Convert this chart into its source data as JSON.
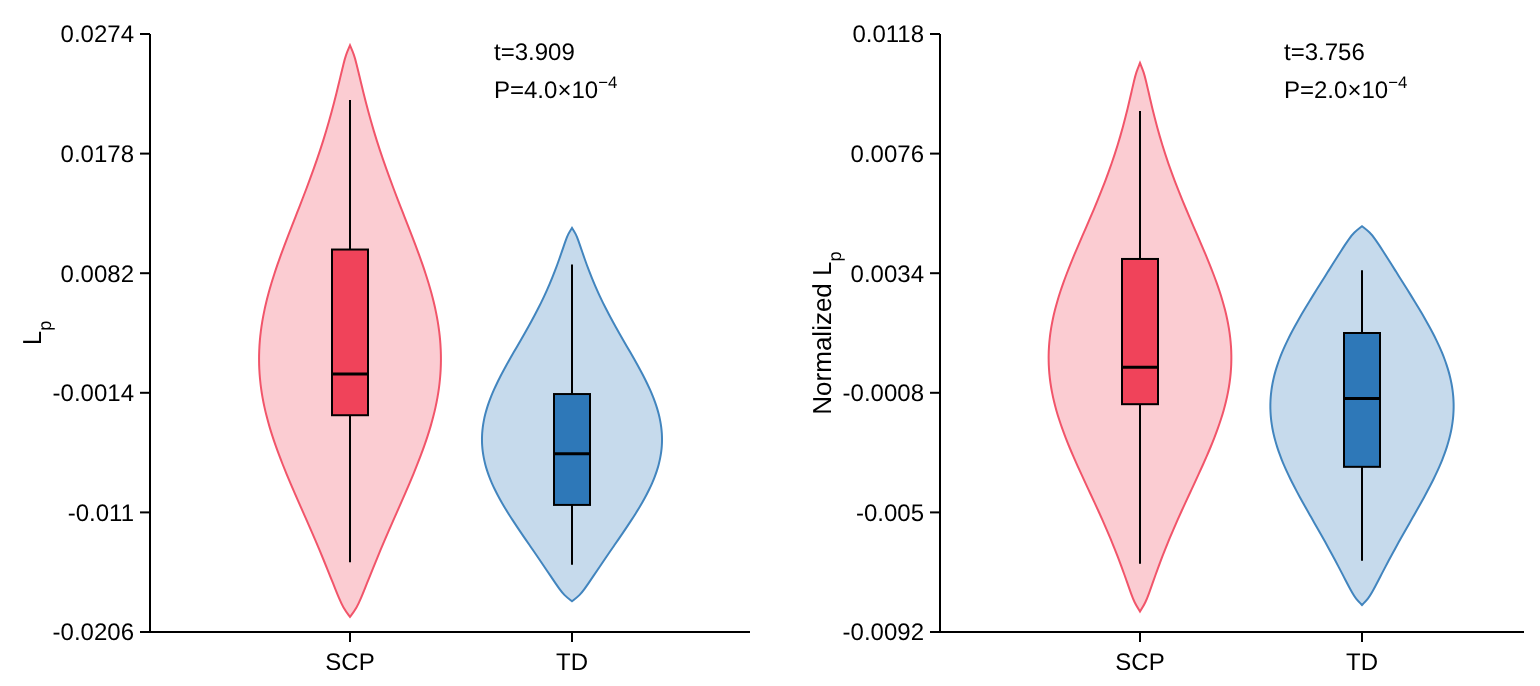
{
  "chart_data": [
    {
      "type": "box",
      "ylabel": "L$_{p}$",
      "categories": [
        "SCP",
        "TD"
      ],
      "colors": [
        "#f0435a",
        "#2e78b8"
      ],
      "ylim": [
        -0.0206,
        0.0274
      ],
      "yticks": [
        -0.0206,
        -0.011,
        -0.0014,
        0.0082,
        0.0178,
        0.0274
      ],
      "annotations": [
        "t=3.909",
        "P=4.0×10$^{−4}$"
      ],
      "boxes": [
        {
          "low": -0.015,
          "q1": -0.0032,
          "median": 0.0001,
          "q3": 0.0101,
          "high": 0.0221
        },
        {
          "low": -0.0152,
          "q1": -0.0104,
          "median": -0.0063,
          "q3": -0.0015,
          "high": 0.0089
        }
      ]
    },
    {
      "type": "box",
      "ylabel": "Normalized L$_{p}$",
      "categories": [
        "SCP",
        "TD"
      ],
      "colors": [
        "#f0435a",
        "#2e78b8"
      ],
      "ylim": [
        -0.0092,
        0.0118
      ],
      "yticks": [
        -0.0092,
        -0.005,
        -0.0008,
        0.0034,
        0.0076,
        0.0118
      ],
      "annotations": [
        "t=3.756",
        "P=2.0×10$^{−4}$"
      ],
      "boxes": [
        {
          "low": -0.0068,
          "q1": -0.0012,
          "median": 0.0001,
          "q3": 0.0039,
          "high": 0.0091
        },
        {
          "low": -0.0067,
          "q1": -0.0034,
          "median": -0.001,
          "q3": 0.0013,
          "high": 0.0035
        }
      ]
    }
  ]
}
